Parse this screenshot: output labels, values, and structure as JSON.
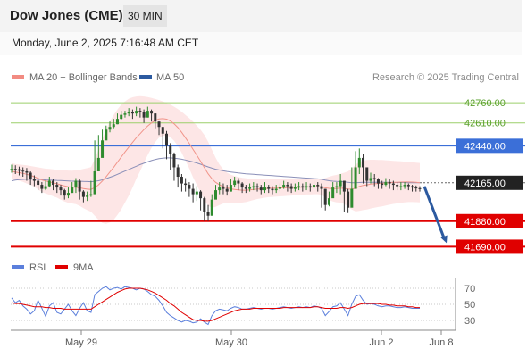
{
  "header": {
    "title": "Dow Jones (CME)",
    "timeframe": "30 MIN",
    "datetime": "Monday, June 2, 2025 7:16:48 AM CET"
  },
  "legend": {
    "items": [
      {
        "label": "MA 20 + Bollinger Bands",
        "color": "#f28b82"
      },
      {
        "label": "MA 50",
        "color": "#2c5aa0"
      }
    ],
    "credit": "Research © 2025 Trading Central"
  },
  "colors": {
    "up": "#2e8b2e",
    "down": "#333333",
    "bollinger_fill": "#fde3e3",
    "ma20": "#f1948a",
    "ma50": "#8a8fb8",
    "resistance": "#9bcf6a",
    "support": "#e00000",
    "pivot": "#3b6fd8",
    "current": "#222222",
    "arrow": "#2c5aa0",
    "rsi": "#5b7fdc",
    "rsi_ma": "#e00000"
  },
  "chart_data": [
    {
      "type": "line",
      "title": "Dow Jones (CME) 30 MIN",
      "ylim": [
        41600,
        42860
      ],
      "x_ticks": [
        "May 29",
        "May 30",
        "Jun 2",
        "Jun 8"
      ],
      "close": [
        42268,
        42265,
        42255,
        42250,
        42240,
        42190,
        42180,
        42150,
        42120,
        42140,
        42180,
        42150,
        42130,
        42110,
        42070,
        42090,
        42130,
        42180,
        42100,
        42060,
        42070,
        42080,
        42250,
        42350,
        42480,
        42560,
        42580,
        42600,
        42640,
        42670,
        42680,
        42690,
        42680,
        42700,
        42690,
        42650,
        42700,
        42680,
        42620,
        42580,
        42530,
        42440,
        42380,
        42280,
        42210,
        42160,
        42150,
        42120,
        42080,
        42100,
        42050,
        41950,
        41920,
        42040,
        42110,
        42130,
        42120,
        42100,
        42150,
        42180,
        42160,
        42130,
        42120,
        42130,
        42140,
        42130,
        42110,
        42130,
        42120,
        42110,
        42120,
        42130,
        42150,
        42140,
        42120,
        42130,
        42140,
        42130,
        42140,
        42130,
        42150,
        42140,
        42120,
        42000,
        42050,
        42130,
        42140,
        42180,
        42100,
        41980,
        42120,
        42280,
        42350,
        42280,
        42180,
        42200,
        42190,
        42160,
        42150,
        42170,
        42160,
        42150,
        42140,
        42140,
        42150,
        42140,
        42130,
        42125,
        42120
      ],
      "highs": [
        42300,
        42295,
        42285,
        42280,
        42275,
        42250,
        42220,
        42200,
        42170,
        42180,
        42210,
        42190,
        42170,
        42150,
        42120,
        42130,
        42170,
        42200,
        42190,
        42110,
        42100,
        42180,
        42480,
        42520,
        42560,
        42590,
        42620,
        42640,
        42680,
        42700,
        42700,
        42720,
        42710,
        42730,
        42720,
        42710,
        42730,
        42710,
        42680,
        42620,
        42580,
        42550,
        42460,
        42390,
        42300,
        42230,
        42200,
        42170,
        42160,
        42140,
        42110,
        42060,
        42000,
        42080,
        42150,
        42170,
        42160,
        42150,
        42190,
        42210,
        42200,
        42170,
        42150,
        42160,
        42170,
        42160,
        42150,
        42170,
        42150,
        42140,
        42150,
        42160,
        42180,
        42170,
        42160,
        42160,
        42170,
        42160,
        42170,
        42160,
        42180,
        42170,
        42160,
        42120,
        42100,
        42170,
        42170,
        42230,
        42180,
        42120,
        42280,
        42400,
        42420,
        42380,
        42260,
        42240,
        42230,
        42200,
        42180,
        42200,
        42190,
        42180,
        42170,
        42170,
        42170,
        42160,
        42150,
        42145,
        42140
      ],
      "lows": [
        42240,
        42230,
        42220,
        42210,
        42180,
        42150,
        42140,
        42110,
        42090,
        42110,
        42130,
        42110,
        42090,
        42070,
        42040,
        42050,
        42090,
        42090,
        42040,
        42020,
        42030,
        42060,
        42200,
        42300,
        42430,
        42520,
        42540,
        42570,
        42600,
        42630,
        42650,
        42660,
        42640,
        42660,
        42650,
        42610,
        42650,
        42620,
        42570,
        42520,
        42420,
        42340,
        42260,
        42180,
        42130,
        42100,
        42100,
        42060,
        42020,
        42030,
        41960,
        41880,
        41880,
        41990,
        42060,
        42080,
        42080,
        42070,
        42100,
        42130,
        42110,
        42090,
        42090,
        42100,
        42110,
        42100,
        42080,
        42090,
        42090,
        42080,
        42090,
        42100,
        42120,
        42100,
        42090,
        42100,
        42110,
        42100,
        42110,
        42100,
        42120,
        42100,
        41980,
        41960,
        41990,
        42100,
        42090,
        42080,
        41950,
        41940,
        41990,
        42180,
        42230,
        42160,
        42140,
        42160,
        42140,
        42120,
        42120,
        42140,
        42120,
        42110,
        42110,
        42110,
        42120,
        42110,
        42100,
        42100,
        42100
      ],
      "ma20": [
        42250,
        42245,
        42240,
        42235,
        42228,
        42220,
        42210,
        42198,
        42186,
        42178,
        42172,
        42165,
        42158,
        42150,
        42142,
        42136,
        42133,
        42132,
        42128,
        42122,
        42118,
        42116,
        42130,
        42150,
        42178,
        42210,
        42245,
        42280,
        42318,
        42356,
        42394,
        42430,
        42465,
        42500,
        42530,
        42560,
        42586,
        42610,
        42628,
        42640,
        42642,
        42638,
        42625,
        42603,
        42575,
        42540,
        42500,
        42458,
        42413,
        42370,
        42325,
        42278,
        42232,
        42195,
        42168,
        42150,
        42138,
        42128,
        42120,
        42116,
        42112,
        42110,
        42110,
        42112,
        42115,
        42118,
        42120,
        42122,
        42124,
        42125,
        42126,
        42127,
        42128,
        42129,
        42130,
        42131,
        42132,
        42133,
        42134,
        42134,
        42135,
        42135,
        42134,
        42128,
        42124,
        42122,
        42122,
        42125,
        42124,
        42118,
        42118,
        42126,
        42138,
        42146,
        42150,
        42155,
        42158,
        42160,
        42162,
        42164,
        42166,
        42168,
        42169,
        42170,
        42171,
        42171,
        42170,
        42168,
        42166
      ],
      "bb_upper": [
        42310,
        42305,
        42300,
        42298,
        42295,
        42290,
        42285,
        42280,
        42275,
        42270,
        42268,
        42265,
        42262,
        42260,
        42258,
        42256,
        42255,
        42258,
        42262,
        42268,
        42274,
        42282,
        42340,
        42410,
        42490,
        42560,
        42620,
        42670,
        42710,
        42745,
        42770,
        42790,
        42800,
        42806,
        42808,
        42806,
        42802,
        42795,
        42788,
        42780,
        42770,
        42758,
        42745,
        42730,
        42712,
        42692,
        42670,
        42645,
        42620,
        42590,
        42558,
        42520,
        42470,
        42410,
        42350,
        42300,
        42265,
        42240,
        42225,
        42215,
        42208,
        42202,
        42198,
        42195,
        42193,
        42192,
        42191,
        42190,
        42190,
        42190,
        42190,
        42190,
        42190,
        42190,
        42190,
        42190,
        42190,
        42190,
        42190,
        42190,
        42190,
        42190,
        42192,
        42200,
        42210,
        42218,
        42224,
        42232,
        42240,
        42250,
        42270,
        42300,
        42320,
        42330,
        42334,
        42336,
        42336,
        42335,
        42334,
        42332,
        42330,
        42328,
        42326,
        42324,
        42322,
        42320,
        42318,
        42315,
        42312
      ],
      "bb_lower": [
        42190,
        42185,
        42180,
        42172,
        42160,
        42150,
        42135,
        42116,
        42097,
        42086,
        42076,
        42065,
        42054,
        42040,
        42026,
        42016,
        42011,
        42006,
        41994,
        41976,
        41962,
        41950,
        41920,
        41890,
        41866,
        41860,
        41870,
        41890,
        41926,
        41967,
        42018,
        42070,
        42130,
        42194,
        42252,
        42314,
        42370,
        42425,
        42468,
        42500,
        42514,
        42518,
        42505,
        42476,
        42438,
        42388,
        42330,
        42271,
        42206,
        42150,
        42092,
        42036,
        41994,
        41980,
        41986,
        42000,
        42011,
        42016,
        42015,
        42017,
        42016,
        42018,
        42022,
        42029,
        42037,
        42044,
        42049,
        42054,
        42058,
        42060,
        42062,
        42064,
        42066,
        42068,
        42070,
        42072,
        42074,
        42076,
        42078,
        42078,
        42080,
        42080,
        42076,
        42056,
        42038,
        42026,
        42020,
        42018,
        42008,
        41986,
        41966,
        41952,
        41956,
        41962,
        41966,
        41974,
        41980,
        41985,
        41990,
        41996,
        42002,
        42008,
        42012,
        42016,
        42020,
        42022,
        42022,
        42021,
        42020
      ],
      "ma50": [
        42180,
        42185,
        42188,
        42190,
        42192,
        42193,
        42192,
        42190,
        42188,
        42186,
        42185,
        42184,
        42183,
        42182,
        42180,
        42178,
        42177,
        42177,
        42176,
        42175,
        42174,
        42173,
        42176,
        42180,
        42187,
        42196,
        42206,
        42216,
        42228,
        42240,
        42252,
        42264,
        42276,
        42288,
        42300,
        42310,
        42320,
        42330,
        42338,
        42344,
        42348,
        42350,
        42350,
        42348,
        42345,
        42340,
        42334,
        42327,
        42320,
        42312,
        42303,
        42293,
        42283,
        42274,
        42266,
        42260,
        42254,
        42249,
        42245,
        42241,
        42238,
        42235,
        42232,
        42230,
        42228,
        42226,
        42224,
        42222,
        42220,
        42218,
        42216,
        42214,
        42212,
        42210,
        42208,
        42206,
        42204,
        42202,
        42200,
        42198,
        42196,
        42194,
        42191,
        42185,
        42180,
        42177,
        42175,
        42174,
        42172,
        42168,
        42166,
        42166,
        42167,
        42168,
        42168,
        42168,
        42168,
        42168,
        42168,
        42168,
        42168,
        42167,
        42167,
        42167,
        42167,
        42166,
        42166,
        42166,
        42165
      ],
      "levels": [
        {
          "value": 42760,
          "label": "42760.00",
          "kind": "resistance"
        },
        {
          "value": 42610,
          "label": "42610.00",
          "kind": "resistance"
        },
        {
          "value": 42440,
          "label": "42440.00",
          "kind": "pivot"
        },
        {
          "value": 42165,
          "label": "42165.00",
          "kind": "current"
        },
        {
          "value": 41880,
          "label": "41880.00",
          "kind": "support"
        },
        {
          "value": 41690,
          "label": "41690.00",
          "kind": "support"
        }
      ],
      "projection": {
        "from": 42165,
        "to": 41690
      }
    },
    {
      "type": "line",
      "ylim": [
        20,
        80
      ],
      "y_ticks": [
        70,
        50,
        30
      ],
      "legend": [
        {
          "label": "RSI",
          "color": "#5b7fdc"
        },
        {
          "label": "9MA",
          "color": "#e00000"
        }
      ],
      "rsi": [
        58,
        52,
        55,
        48,
        44,
        38,
        42,
        55,
        45,
        35,
        48,
        52,
        40,
        38,
        44,
        50,
        42,
        36,
        45,
        52,
        42,
        40,
        62,
        66,
        70,
        72,
        68,
        70,
        71,
        69,
        72,
        71,
        70,
        68,
        70,
        69,
        66,
        62,
        60,
        55,
        48,
        40,
        36,
        33,
        30,
        28,
        30,
        29,
        27,
        28,
        32,
        28,
        25,
        36,
        42,
        44,
        43,
        42,
        45,
        47,
        46,
        44,
        44,
        45,
        46,
        45,
        44,
        45,
        45,
        44,
        45,
        46,
        47,
        46,
        45,
        46,
        47,
        46,
        47,
        46,
        48,
        47,
        45,
        36,
        41,
        47,
        48,
        52,
        44,
        36,
        50,
        60,
        62,
        55,
        50,
        51,
        50,
        48,
        47,
        48,
        48,
        47,
        46,
        46,
        47,
        46,
        45,
        45,
        45
      ],
      "rsi_ma": [
        52,
        51,
        51,
        50,
        49,
        48,
        47,
        47,
        47,
        46,
        46,
        45,
        45,
        45,
        44,
        44,
        44,
        44,
        44,
        44,
        44,
        44,
        47,
        50,
        53,
        56,
        59,
        62,
        65,
        67,
        69,
        70,
        70,
        70,
        70,
        69,
        68,
        66,
        64,
        61,
        58,
        55,
        51,
        48,
        44,
        40,
        37,
        34,
        31,
        30,
        30,
        29,
        29,
        30,
        32,
        34,
        36,
        38,
        40,
        42,
        43,
        44,
        44,
        44,
        45,
        45,
        45,
        45,
        45,
        45,
        45,
        45,
        46,
        46,
        46,
        46,
        46,
        46,
        46,
        46,
        47,
        47,
        46,
        45,
        45,
        45,
        45,
        46,
        46,
        45,
        46,
        48,
        50,
        51,
        51,
        51,
        51,
        51,
        50,
        50,
        49,
        49,
        48,
        48,
        48,
        47,
        47,
        46,
        46
      ]
    }
  ]
}
